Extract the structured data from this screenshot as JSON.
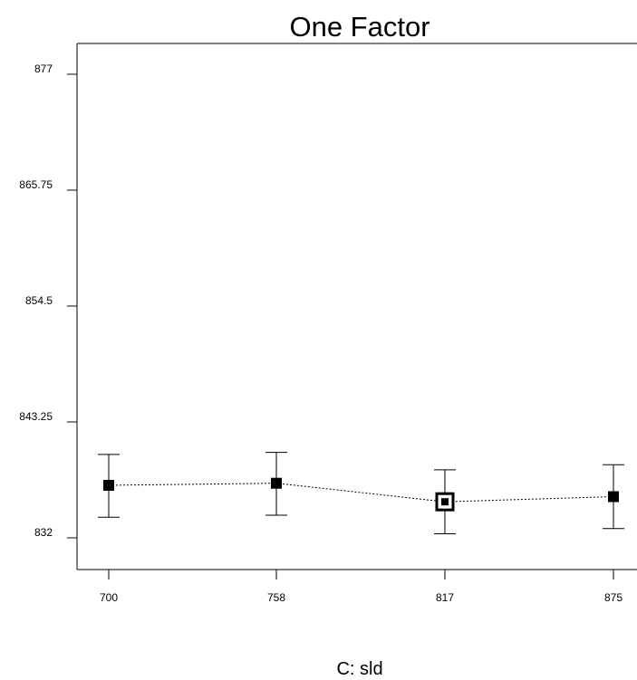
{
  "chart_data": {
    "type": "scatter",
    "title": "One Factor",
    "xlabel": "C: sld",
    "ylabel": "",
    "x_ticks": [
      "700",
      "758",
      "817",
      "875"
    ],
    "y_ticks": [
      "832",
      "843.25",
      "854.5",
      "865.75",
      "877"
    ],
    "ylim": [
      829,
      880
    ],
    "series": [
      {
        "x": [
          "700",
          "758",
          "817",
          "875"
        ],
        "y": [
          837.1,
          837.3,
          835.5,
          836.0
        ],
        "lower": [
          834.0,
          834.2,
          832.4,
          832.9
        ],
        "upper": [
          840.1,
          840.3,
          838.6,
          839.1
        ],
        "highlighted_point": "817"
      }
    ],
    "line_style": "dashed",
    "grid": false
  }
}
